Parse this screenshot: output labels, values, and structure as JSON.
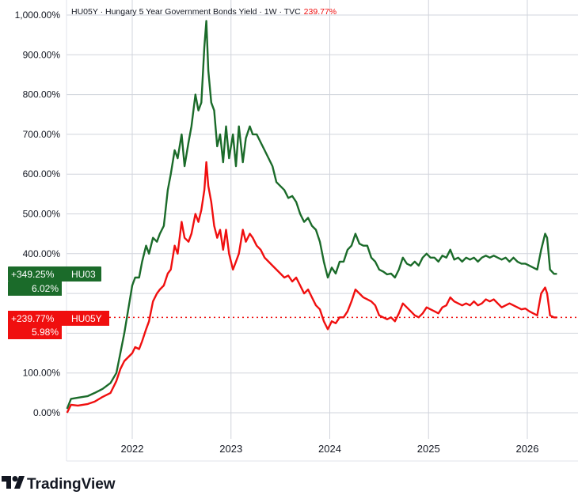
{
  "header": {
    "title": "HU05Y · Hungary 5 Year Government Bonds Yield · 1W · TVC",
    "change": "239.77%"
  },
  "brand": {
    "name": "TradingView"
  },
  "colors": {
    "green": "#1b6b2a",
    "red": "#f00f0f",
    "grid": "#d1d4dc"
  },
  "badges": {
    "hu03": {
      "change": "+349.25%",
      "symbol": "HU03",
      "value": "6.02%"
    },
    "hu05y": {
      "change": "+239.77%",
      "symbol": "HU05Y",
      "value": "5.98%"
    }
  },
  "chart_data": {
    "type": "line",
    "y_axis": {
      "min": -50,
      "max": 1000,
      "ticks": [
        0,
        100,
        200,
        300,
        400,
        500,
        600,
        700,
        800,
        900,
        1000
      ],
      "tick_labels": [
        "0.00%",
        "100.00%",
        "",
        "",
        "400.00%",
        "500.00%",
        "600.00%",
        "700.00%",
        "800.00%",
        "900.00%",
        "1,000.00%"
      ]
    },
    "x_axis": {
      "ticks": [
        2022,
        2023,
        2024,
        2025,
        2026
      ],
      "tick_labels": [
        "2022",
        "2023",
        "2024",
        "2025",
        "2026"
      ]
    },
    "grid": true,
    "series": [
      {
        "name": "HU03",
        "color": "#1b6b2a",
        "last": 349.25,
        "points": [
          [
            2021.34,
            10
          ],
          [
            2021.38,
            35
          ],
          [
            2021.45,
            38
          ],
          [
            2021.55,
            42
          ],
          [
            2021.62,
            50
          ],
          [
            2021.7,
            60
          ],
          [
            2021.78,
            75
          ],
          [
            2021.84,
            100
          ],
          [
            2021.88,
            150
          ],
          [
            2021.92,
            200
          ],
          [
            2021.96,
            260
          ],
          [
            2022.0,
            320
          ],
          [
            2022.03,
            340
          ],
          [
            2022.07,
            340
          ],
          [
            2022.1,
            380
          ],
          [
            2022.14,
            420
          ],
          [
            2022.17,
            400
          ],
          [
            2022.21,
            440
          ],
          [
            2022.25,
            430
          ],
          [
            2022.28,
            450
          ],
          [
            2022.32,
            470
          ],
          [
            2022.36,
            560
          ],
          [
            2022.39,
            600
          ],
          [
            2022.43,
            660
          ],
          [
            2022.46,
            640
          ],
          [
            2022.5,
            700
          ],
          [
            2022.53,
            620
          ],
          [
            2022.57,
            680
          ],
          [
            2022.6,
            720
          ],
          [
            2022.64,
            800
          ],
          [
            2022.67,
            760
          ],
          [
            2022.7,
            780
          ],
          [
            2022.73,
            920
          ],
          [
            2022.75,
            985
          ],
          [
            2022.77,
            860
          ],
          [
            2022.8,
            780
          ],
          [
            2022.83,
            760
          ],
          [
            2022.86,
            670
          ],
          [
            2022.89,
            700
          ],
          [
            2022.92,
            630
          ],
          [
            2022.95,
            720
          ],
          [
            2022.98,
            640
          ],
          [
            2023.02,
            700
          ],
          [
            2023.05,
            620
          ],
          [
            2023.08,
            720
          ],
          [
            2023.12,
            630
          ],
          [
            2023.15,
            690
          ],
          [
            2023.19,
            720
          ],
          [
            2023.22,
            700
          ],
          [
            2023.26,
            700
          ],
          [
            2023.3,
            680
          ],
          [
            2023.34,
            660
          ],
          [
            2023.38,
            640
          ],
          [
            2023.42,
            620
          ],
          [
            2023.46,
            580
          ],
          [
            2023.5,
            570
          ],
          [
            2023.54,
            560
          ],
          [
            2023.58,
            540
          ],
          [
            2023.62,
            545
          ],
          [
            2023.66,
            530
          ],
          [
            2023.7,
            500
          ],
          [
            2023.74,
            480
          ],
          [
            2023.78,
            490
          ],
          [
            2023.82,
            470
          ],
          [
            2023.86,
            460
          ],
          [
            2023.9,
            430
          ],
          [
            2023.94,
            380
          ],
          [
            2023.98,
            340
          ],
          [
            2024.02,
            365
          ],
          [
            2024.06,
            350
          ],
          [
            2024.1,
            380
          ],
          [
            2024.14,
            380
          ],
          [
            2024.18,
            410
          ],
          [
            2024.22,
            420
          ],
          [
            2024.26,
            450
          ],
          [
            2024.3,
            425
          ],
          [
            2024.34,
            420
          ],
          [
            2024.38,
            420
          ],
          [
            2024.42,
            390
          ],
          [
            2024.46,
            380
          ],
          [
            2024.5,
            360
          ],
          [
            2024.54,
            355
          ],
          [
            2024.58,
            348
          ],
          [
            2024.62,
            350
          ],
          [
            2024.66,
            340
          ],
          [
            2024.7,
            360
          ],
          [
            2024.74,
            390
          ],
          [
            2024.78,
            375
          ],
          [
            2024.82,
            370
          ],
          [
            2024.86,
            380
          ],
          [
            2024.9,
            370
          ],
          [
            2024.94,
            390
          ],
          [
            2024.98,
            400
          ],
          [
            2025.02,
            390
          ],
          [
            2025.06,
            390
          ],
          [
            2025.1,
            380
          ],
          [
            2025.14,
            395
          ],
          [
            2025.18,
            390
          ],
          [
            2025.22,
            410
          ],
          [
            2025.26,
            385
          ],
          [
            2025.3,
            390
          ],
          [
            2025.34,
            380
          ],
          [
            2025.38,
            390
          ],
          [
            2025.42,
            385
          ],
          [
            2025.46,
            390
          ],
          [
            2025.5,
            380
          ],
          [
            2025.54,
            390
          ],
          [
            2025.58,
            395
          ],
          [
            2025.62,
            390
          ],
          [
            2025.66,
            395
          ],
          [
            2025.7,
            390
          ],
          [
            2025.74,
            385
          ],
          [
            2025.78,
            390
          ],
          [
            2025.82,
            380
          ],
          [
            2025.86,
            390
          ],
          [
            2025.9,
            380
          ],
          [
            2025.94,
            375
          ],
          [
            2025.98,
            375
          ],
          [
            2026.02,
            370
          ],
          [
            2026.06,
            365
          ],
          [
            2026.1,
            360
          ],
          [
            2026.14,
            410
          ],
          [
            2026.18,
            450
          ],
          [
            2026.2,
            440
          ],
          [
            2026.23,
            360
          ],
          [
            2026.27,
            349.25
          ],
          [
            2026.3,
            349.25
          ]
        ]
      },
      {
        "name": "HU05Y",
        "color": "#f00f0f",
        "last": 239.77,
        "points": [
          [
            2021.34,
            0
          ],
          [
            2021.38,
            20
          ],
          [
            2021.45,
            18
          ],
          [
            2021.55,
            22
          ],
          [
            2021.62,
            28
          ],
          [
            2021.7,
            40
          ],
          [
            2021.78,
            50
          ],
          [
            2021.84,
            80
          ],
          [
            2021.88,
            110
          ],
          [
            2021.92,
            130
          ],
          [
            2021.96,
            140
          ],
          [
            2022.0,
            150
          ],
          [
            2022.03,
            165
          ],
          [
            2022.07,
            160
          ],
          [
            2022.1,
            180
          ],
          [
            2022.14,
            210
          ],
          [
            2022.17,
            230
          ],
          [
            2022.21,
            280
          ],
          [
            2022.25,
            300
          ],
          [
            2022.28,
            310
          ],
          [
            2022.32,
            320
          ],
          [
            2022.36,
            350
          ],
          [
            2022.39,
            360
          ],
          [
            2022.43,
            420
          ],
          [
            2022.46,
            400
          ],
          [
            2022.5,
            480
          ],
          [
            2022.53,
            440
          ],
          [
            2022.57,
            430
          ],
          [
            2022.6,
            450
          ],
          [
            2022.64,
            500
          ],
          [
            2022.67,
            480
          ],
          [
            2022.7,
            510
          ],
          [
            2022.73,
            560
          ],
          [
            2022.75,
            630
          ],
          [
            2022.77,
            570
          ],
          [
            2022.8,
            530
          ],
          [
            2022.83,
            470
          ],
          [
            2022.86,
            440
          ],
          [
            2022.89,
            460
          ],
          [
            2022.92,
            410
          ],
          [
            2022.95,
            460
          ],
          [
            2022.98,
            400
          ],
          [
            2023.02,
            360
          ],
          [
            2023.05,
            380
          ],
          [
            2023.08,
            400
          ],
          [
            2023.12,
            460
          ],
          [
            2023.15,
            430
          ],
          [
            2023.19,
            450
          ],
          [
            2023.22,
            440
          ],
          [
            2023.26,
            420
          ],
          [
            2023.3,
            410
          ],
          [
            2023.34,
            390
          ],
          [
            2023.38,
            380
          ],
          [
            2023.42,
            370
          ],
          [
            2023.46,
            360
          ],
          [
            2023.5,
            350
          ],
          [
            2023.54,
            340
          ],
          [
            2023.58,
            345
          ],
          [
            2023.62,
            330
          ],
          [
            2023.66,
            340
          ],
          [
            2023.7,
            320
          ],
          [
            2023.74,
            300
          ],
          [
            2023.78,
            310
          ],
          [
            2023.82,
            290
          ],
          [
            2023.86,
            270
          ],
          [
            2023.9,
            260
          ],
          [
            2023.94,
            230
          ],
          [
            2023.98,
            210
          ],
          [
            2024.02,
            230
          ],
          [
            2024.06,
            225
          ],
          [
            2024.1,
            240
          ],
          [
            2024.14,
            240
          ],
          [
            2024.18,
            255
          ],
          [
            2024.22,
            280
          ],
          [
            2024.26,
            310
          ],
          [
            2024.3,
            300
          ],
          [
            2024.34,
            290
          ],
          [
            2024.38,
            285
          ],
          [
            2024.42,
            280
          ],
          [
            2024.46,
            270
          ],
          [
            2024.5,
            245
          ],
          [
            2024.54,
            240
          ],
          [
            2024.58,
            235
          ],
          [
            2024.62,
            240
          ],
          [
            2024.66,
            230
          ],
          [
            2024.7,
            250
          ],
          [
            2024.74,
            275
          ],
          [
            2024.78,
            265
          ],
          [
            2024.82,
            255
          ],
          [
            2024.86,
            245
          ],
          [
            2024.9,
            240
          ],
          [
            2024.94,
            250
          ],
          [
            2024.98,
            265
          ],
          [
            2025.02,
            260
          ],
          [
            2025.06,
            255
          ],
          [
            2025.1,
            250
          ],
          [
            2025.14,
            265
          ],
          [
            2025.18,
            270
          ],
          [
            2025.22,
            290
          ],
          [
            2025.26,
            280
          ],
          [
            2025.3,
            275
          ],
          [
            2025.34,
            270
          ],
          [
            2025.38,
            275
          ],
          [
            2025.42,
            270
          ],
          [
            2025.46,
            280
          ],
          [
            2025.5,
            270
          ],
          [
            2025.54,
            275
          ],
          [
            2025.58,
            285
          ],
          [
            2025.62,
            280
          ],
          [
            2025.66,
            285
          ],
          [
            2025.7,
            275
          ],
          [
            2025.74,
            265
          ],
          [
            2025.78,
            270
          ],
          [
            2025.82,
            275
          ],
          [
            2025.86,
            270
          ],
          [
            2025.9,
            265
          ],
          [
            2025.94,
            260
          ],
          [
            2025.98,
            262
          ],
          [
            2026.02,
            255
          ],
          [
            2026.06,
            250
          ],
          [
            2026.1,
            245
          ],
          [
            2026.14,
            300
          ],
          [
            2026.18,
            315
          ],
          [
            2026.2,
            300
          ],
          [
            2026.23,
            245
          ],
          [
            2026.27,
            239.77
          ],
          [
            2026.3,
            239.77
          ]
        ]
      }
    ]
  }
}
